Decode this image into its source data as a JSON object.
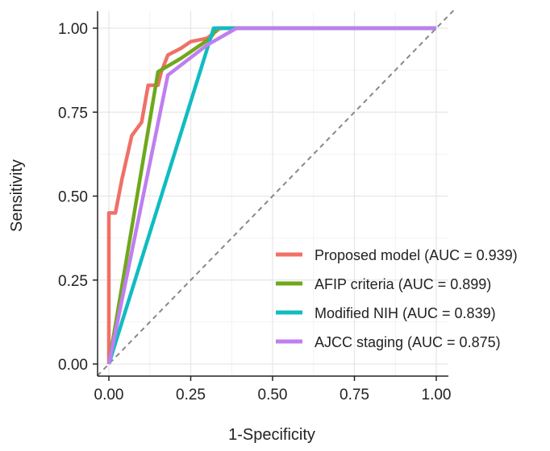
{
  "chart_data": {
    "type": "line",
    "xlabel": "1-Specificity",
    "ylabel": "Sensitivity",
    "xlim": [
      0,
      1
    ],
    "ylim": [
      0,
      1
    ],
    "x_ticks": [
      "0.00",
      "0.25",
      "0.50",
      "0.75",
      "1.00"
    ],
    "y_ticks": [
      "0.00",
      "0.25",
      "0.50",
      "0.75",
      "1.00"
    ],
    "grid": true,
    "legend_position": "bottom-right",
    "reference_line": {
      "style": "dashed",
      "color": "#888888",
      "from": [
        0,
        0
      ],
      "to": [
        1,
        1
      ]
    },
    "series": [
      {
        "name": "Proposed model (AUC = 0.939)",
        "color": "#f07068",
        "points": [
          [
            0,
            0
          ],
          [
            0,
            0.45
          ],
          [
            0.02,
            0.45
          ],
          [
            0.04,
            0.55
          ],
          [
            0.07,
            0.68
          ],
          [
            0.1,
            0.72
          ],
          [
            0.12,
            0.83
          ],
          [
            0.15,
            0.83
          ],
          [
            0.16,
            0.87
          ],
          [
            0.18,
            0.92
          ],
          [
            0.22,
            0.94
          ],
          [
            0.25,
            0.96
          ],
          [
            0.3,
            0.97
          ],
          [
            0.34,
            1.0
          ],
          [
            1.0,
            1.0
          ]
        ]
      },
      {
        "name": "AFIP criteria (AUC = 0.899)",
        "color": "#6fa81c",
        "points": [
          [
            0,
            0
          ],
          [
            0.15,
            0.87
          ],
          [
            0.22,
            0.91
          ],
          [
            0.31,
            0.97
          ],
          [
            0.33,
            1.0
          ],
          [
            1.0,
            1.0
          ]
        ]
      },
      {
        "name": "Modified NIH (AUC = 0.839)",
        "color": "#10bcc2",
        "points": [
          [
            0,
            0
          ],
          [
            0.32,
            1.0
          ],
          [
            1.0,
            1.0
          ]
        ]
      },
      {
        "name": "AJCC staging (AUC = 0.875)",
        "color": "#c07ef0",
        "points": [
          [
            0,
            0
          ],
          [
            0.18,
            0.86
          ],
          [
            0.3,
            0.95
          ],
          [
            0.39,
            1.0
          ],
          [
            1.0,
            1.0
          ]
        ]
      }
    ]
  }
}
